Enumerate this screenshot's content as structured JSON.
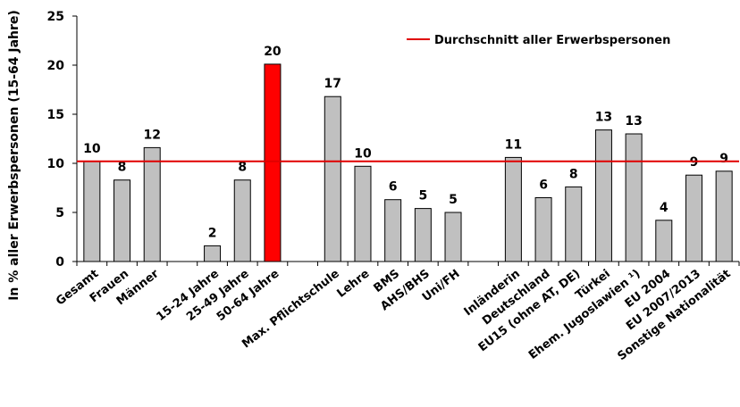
{
  "chart_data": {
    "type": "bar",
    "ylabel": "In % aller Erwerbspersonen (15-64 Jahre)",
    "ylim": [
      0,
      25
    ],
    "yticks": [
      0,
      5,
      10,
      15,
      20,
      25
    ],
    "average_line": {
      "name": "Durchschnitt aller Erwerbspersonen",
      "value": 10.2,
      "color": "#e00000"
    },
    "bar_color": "#c0c0c0",
    "highlight_color": "#ff0000",
    "highlight_index": 6,
    "categories": [
      "Gesamt",
      "Frauen",
      "Männer",
      "",
      "15-24 Jahre",
      "25-49 Jahre",
      "50-64 Jahre",
      "",
      "Max. Pflichtschule",
      "Lehre",
      "BMS",
      "AHS/BHS",
      "Uni/FH",
      "",
      "Inländerin",
      "Deutschland",
      "EU15 (ohne AT, DE)",
      "Türkei",
      "Ehem. Jugoslawien ¹)",
      "EU 2004",
      "EU 2007/2013",
      "Sonstige Nationalität"
    ],
    "values": [
      10.2,
      8.3,
      11.6,
      null,
      1.6,
      8.3,
      20.1,
      null,
      16.8,
      9.7,
      6.3,
      5.4,
      5.0,
      null,
      10.6,
      6.5,
      7.6,
      13.4,
      13.0,
      4.2,
      8.8,
      9.2
    ],
    "data_labels": [
      "10",
      "8",
      "12",
      "",
      "2",
      "8",
      "20",
      "",
      "17",
      "10",
      "6",
      "5",
      "5",
      "",
      "11",
      "6",
      "8",
      "13",
      "13",
      "4",
      "9",
      "9"
    ]
  }
}
